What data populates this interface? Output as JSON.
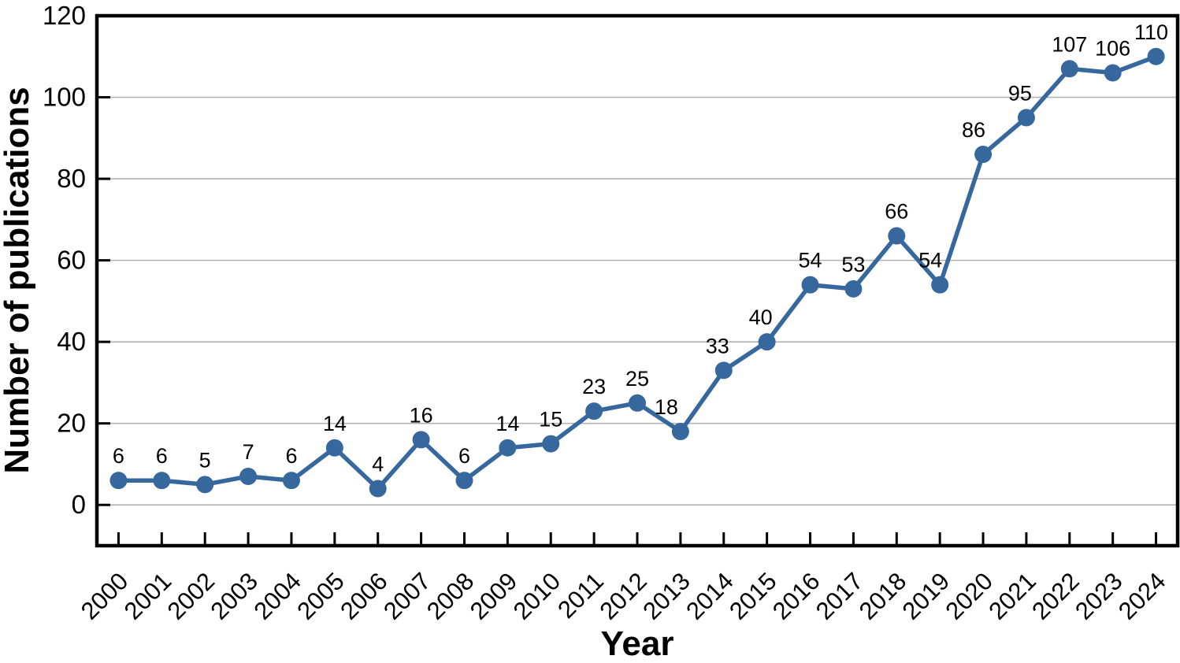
{
  "chart_data": {
    "type": "line",
    "title": "",
    "xlabel": "Year",
    "ylabel": "Number of publications",
    "categories": [
      "2000",
      "2001",
      "2002",
      "2003",
      "2004",
      "2005",
      "2006",
      "2007",
      "2008",
      "2009",
      "2010",
      "2011",
      "2012",
      "2013",
      "2014",
      "2015",
      "2016",
      "2017",
      "2018",
      "2019",
      "2020",
      "2021",
      "2022",
      "2023",
      "2024"
    ],
    "series": [
      {
        "name": "Number of publications",
        "values": [
          6,
          6,
          5,
          7,
          6,
          14,
          4,
          16,
          6,
          14,
          15,
          23,
          25,
          18,
          33,
          40,
          54,
          53,
          66,
          54,
          86,
          95,
          107,
          106,
          110
        ]
      }
    ],
    "point_labels": [
      "6",
      "6",
      "5",
      "7",
      "6",
      "14",
      "4",
      "16",
      "6",
      "14",
      "15",
      "23",
      "25",
      "18",
      "33",
      "40",
      "54",
      "53",
      "66",
      "54",
      "86",
      "95",
      "107",
      "106",
      "110"
    ],
    "ylim": [
      -10,
      120
    ],
    "yticks": [
      0,
      20,
      40,
      60,
      80,
      100,
      120
    ],
    "ytick_labels": [
      "0",
      "20",
      "40",
      "60",
      "80",
      "100",
      "120"
    ],
    "grid": "horizontal",
    "legend_position": "none",
    "marker": "circle",
    "colors": {
      "line": "#36689d",
      "marker": "#36689d",
      "grid": "#b3b3b3",
      "axis": "#000000",
      "text": "#000000",
      "background": "#ffffff"
    }
  }
}
